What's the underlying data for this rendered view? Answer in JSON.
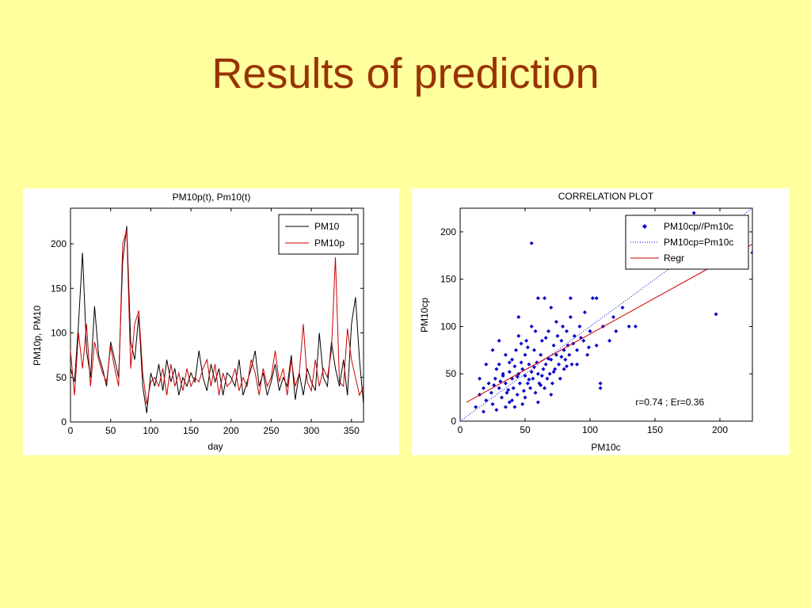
{
  "slide": {
    "title": "Results of prediction"
  },
  "colors": {
    "background": "#ffff9e",
    "title": "#993300",
    "pm10": "#000000",
    "pm10p": "#cc0000",
    "scatter": "#0000cc",
    "regr": "#cc0000",
    "ideal": "#0000cc"
  },
  "chart_data": [
    {
      "type": "line",
      "title": "PM10p(t), Pm10(t)",
      "xlabel": "day",
      "ylabel": "PM10p, PM10",
      "xlim": [
        0,
        365
      ],
      "ylim": [
        0,
        240
      ],
      "xticks": [
        0,
        50,
        100,
        150,
        200,
        250,
        300,
        350
      ],
      "yticks": [
        0,
        50,
        100,
        150,
        200
      ],
      "legend_position": "top-right",
      "series": [
        {
          "name": "PM10",
          "color": "#000000",
          "x": [
            0,
            5,
            10,
            15,
            20,
            25,
            30,
            35,
            40,
            45,
            50,
            55,
            60,
            65,
            70,
            75,
            80,
            85,
            90,
            95,
            100,
            105,
            110,
            115,
            120,
            125,
            130,
            135,
            140,
            145,
            150,
            155,
            160,
            165,
            170,
            175,
            180,
            185,
            190,
            195,
            200,
            205,
            210,
            215,
            220,
            225,
            230,
            235,
            240,
            245,
            250,
            255,
            260,
            265,
            270,
            275,
            280,
            285,
            290,
            295,
            300,
            305,
            310,
            315,
            320,
            325,
            330,
            335,
            340,
            345,
            350,
            355,
            360,
            365
          ],
          "y": [
            60,
            45,
            110,
            190,
            80,
            50,
            130,
            75,
            60,
            40,
            90,
            70,
            50,
            180,
            220,
            90,
            70,
            120,
            40,
            10,
            55,
            40,
            65,
            35,
            70,
            45,
            60,
            30,
            50,
            40,
            55,
            45,
            80,
            50,
            35,
            65,
            45,
            60,
            30,
            55,
            50,
            40,
            70,
            30,
            45,
            60,
            80,
            40,
            55,
            30,
            45,
            65,
            35,
            50,
            40,
            75,
            25,
            55,
            30,
            60,
            45,
            35,
            100,
            50,
            40,
            90,
            60,
            40,
            70,
            30,
            110,
            140,
            70,
            20
          ]
        },
        {
          "name": "PM10p",
          "color": "#cc0000",
          "x": [
            0,
            5,
            10,
            15,
            20,
            25,
            30,
            35,
            40,
            45,
            50,
            55,
            60,
            65,
            70,
            75,
            80,
            85,
            90,
            95,
            100,
            105,
            110,
            115,
            120,
            125,
            130,
            135,
            140,
            145,
            150,
            155,
            160,
            165,
            170,
            175,
            180,
            185,
            190,
            195,
            200,
            205,
            210,
            215,
            220,
            225,
            230,
            235,
            240,
            245,
            250,
            255,
            260,
            265,
            270,
            275,
            280,
            285,
            290,
            295,
            300,
            305,
            310,
            315,
            320,
            325,
            330,
            335,
            340,
            345,
            350,
            355,
            360,
            365
          ],
          "y": [
            80,
            30,
            100,
            60,
            110,
            40,
            90,
            70,
            55,
            45,
            85,
            60,
            40,
            200,
            215,
            60,
            110,
            125,
            55,
            20,
            45,
            50,
            40,
            60,
            30,
            65,
            40,
            55,
            35,
            60,
            40,
            50,
            45,
            60,
            70,
            40,
            65,
            30,
            55,
            40,
            45,
            60,
            35,
            50,
            40,
            70,
            55,
            30,
            60,
            40,
            50,
            80,
            45,
            60,
            30,
            70,
            40,
            55,
            110,
            45,
            35,
            70,
            40,
            60,
            50,
            80,
            185,
            45,
            40,
            105,
            70,
            50,
            30,
            40
          ]
        }
      ]
    },
    {
      "type": "scatter",
      "title": "CORRELATION PLOT",
      "xlabel": "PM10c",
      "ylabel": "PM10cp",
      "xlim": [
        0,
        225
      ],
      "ylim": [
        0,
        225
      ],
      "xticks": [
        0,
        50,
        100,
        150,
        200
      ],
      "yticks": [
        0,
        50,
        100,
        150,
        200
      ],
      "legend_position": "top-right",
      "annotation": "r=0.74 ; Er=0.36",
      "legend": [
        {
          "name": "PM10cp//Pm10c",
          "kind": "marker",
          "color": "#0000cc"
        },
        {
          "name": "PM10cp=Pm10c",
          "kind": "dotted",
          "color": "#0000cc"
        },
        {
          "name": "Regr",
          "kind": "line",
          "color": "#cc0000"
        }
      ],
      "regression": {
        "x": [
          5,
          225
        ],
        "y": [
          20,
          187
        ]
      },
      "points": [
        [
          12,
          15
        ],
        [
          15,
          28
        ],
        [
          18,
          35
        ],
        [
          20,
          22
        ],
        [
          22,
          40
        ],
        [
          24,
          30
        ],
        [
          25,
          18
        ],
        [
          27,
          45
        ],
        [
          28,
          55
        ],
        [
          30,
          35
        ],
        [
          30,
          60
        ],
        [
          32,
          25
        ],
        [
          33,
          48
        ],
        [
          35,
          40
        ],
        [
          35,
          70
        ],
        [
          36,
          30
        ],
        [
          38,
          52
        ],
        [
          38,
          20
        ],
        [
          40,
          45
        ],
        [
          40,
          65
        ],
        [
          41,
          35
        ],
        [
          42,
          58
        ],
        [
          43,
          75
        ],
        [
          44,
          28
        ],
        [
          45,
          50
        ],
        [
          45,
          90
        ],
        [
          46,
          40
        ],
        [
          47,
          62
        ],
        [
          48,
          55
        ],
        [
          49,
          32
        ],
        [
          50,
          48
        ],
        [
          50,
          70
        ],
        [
          51,
          85
        ],
        [
          52,
          40
        ],
        [
          53,
          60
        ],
        [
          54,
          35
        ],
        [
          55,
          52
        ],
        [
          55,
          100
        ],
        [
          56,
          45
        ],
        [
          57,
          75
        ],
        [
          58,
          30
        ],
        [
          59,
          62
        ],
        [
          60,
          50
        ],
        [
          60,
          130
        ],
        [
          61,
          40
        ],
        [
          62,
          70
        ],
        [
          63,
          85
        ],
        [
          64,
          55
        ],
        [
          65,
          35
        ],
        [
          66,
          60
        ],
        [
          67,
          45
        ],
        [
          68,
          95
        ],
        [
          69,
          50
        ],
        [
          70,
          65
        ],
        [
          70,
          120
        ],
        [
          71,
          40
        ],
        [
          72,
          80
        ],
        [
          73,
          55
        ],
        [
          74,
          70
        ],
        [
          75,
          90
        ],
        [
          76,
          60
        ],
        [
          77,
          45
        ],
        [
          78,
          85
        ],
        [
          79,
          100
        ],
        [
          80,
          75
        ],
        [
          80,
          55
        ],
        [
          81,
          65
        ],
        [
          82,
          95
        ],
        [
          83,
          80
        ],
        [
          84,
          70
        ],
        [
          85,
          110
        ],
        [
          86,
          60
        ],
        [
          88,
          90
        ],
        [
          90,
          75
        ],
        [
          92,
          100
        ],
        [
          95,
          85
        ],
        [
          98,
          70
        ],
        [
          100,
          95
        ],
        [
          102,
          130
        ],
        [
          105,
          80
        ],
        [
          108,
          40
        ],
        [
          110,
          100
        ],
        [
          115,
          85
        ],
        [
          118,
          110
        ],
        [
          120,
          95
        ],
        [
          125,
          120
        ],
        [
          130,
          100
        ],
        [
          135,
          100
        ],
        [
          20,
          60
        ],
        [
          25,
          75
        ],
        [
          15,
          45
        ],
        [
          30,
          85
        ],
        [
          45,
          110
        ],
        [
          55,
          188
        ],
        [
          65,
          130
        ],
        [
          85,
          130
        ],
        [
          105,
          130
        ],
        [
          180,
          220
        ],
        [
          197,
          113
        ],
        [
          225,
          178
        ],
        [
          35,
          15
        ],
        [
          40,
          22
        ],
        [
          28,
          12
        ],
        [
          50,
          25
        ],
        [
          60,
          20
        ],
        [
          18,
          10
        ],
        [
          108,
          35
        ],
        [
          48,
          18
        ],
        [
          62,
          38
        ],
        [
          70,
          28
        ],
        [
          42,
          15
        ],
        [
          38,
          62
        ],
        [
          33,
          50
        ],
        [
          52,
          78
        ],
        [
          66,
          88
        ],
        [
          74,
          105
        ],
        [
          90,
          60
        ],
        [
          96,
          115
        ],
        [
          58,
          95
        ],
        [
          47,
          82
        ],
        [
          26,
          38
        ],
        [
          31,
          42
        ],
        [
          37,
          33
        ],
        [
          44,
          47
        ],
        [
          53,
          44
        ],
        [
          57,
          57
        ],
        [
          63,
          48
        ],
        [
          68,
          66
        ],
        [
          72,
          52
        ],
        [
          78,
          68
        ],
        [
          82,
          58
        ],
        [
          87,
          82
        ],
        [
          93,
          88
        ],
        [
          99,
          78
        ]
      ]
    }
  ]
}
